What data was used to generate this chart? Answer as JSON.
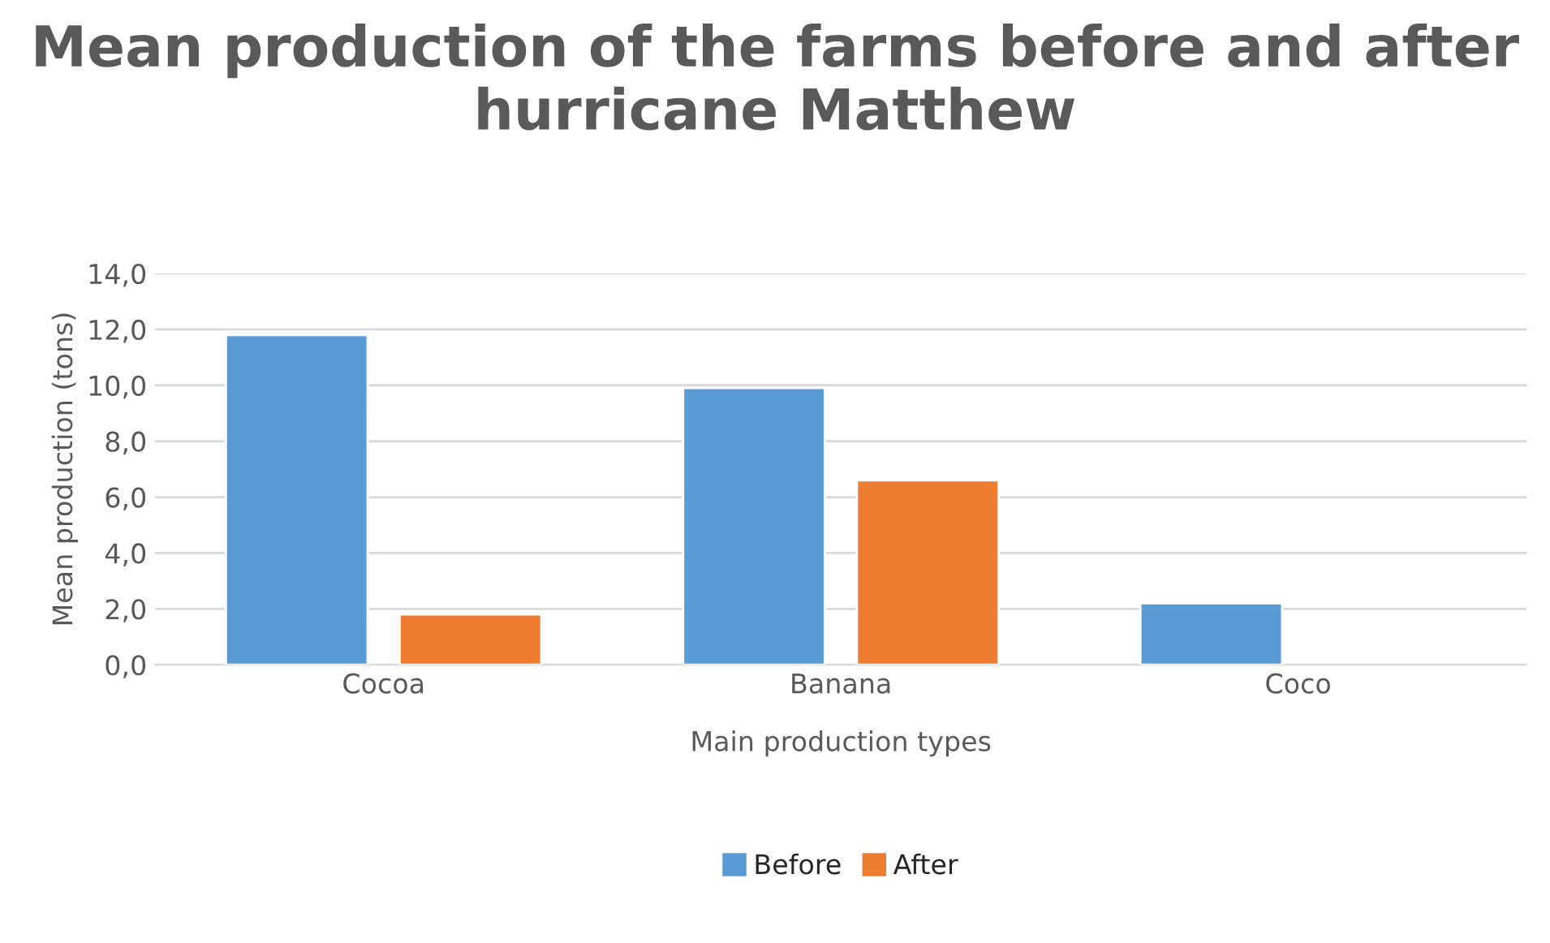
{
  "chart_data": {
    "type": "bar",
    "title": "Mean production of the farms before and after hurricane Matthew",
    "xlabel": "Main production types",
    "ylabel": "Mean production (tons)",
    "categories": [
      "Cocoa",
      "Banana",
      "Coco"
    ],
    "series": [
      {
        "name": "Before",
        "color": "#5b9bd5",
        "values": [
          11.8,
          9.9,
          2.2
        ]
      },
      {
        "name": "After",
        "color": "#ed7d31",
        "values": [
          1.8,
          6.6,
          null
        ]
      }
    ],
    "ylim": [
      0,
      14
    ],
    "yticks": [
      {
        "value": 0,
        "label": "0,0"
      },
      {
        "value": 2,
        "label": "2,0"
      },
      {
        "value": 4,
        "label": "4,0"
      },
      {
        "value": 6,
        "label": "6,0"
      },
      {
        "value": 8,
        "label": "8,0"
      },
      {
        "value": 10,
        "label": "10,0"
      },
      {
        "value": 12,
        "label": "12,0"
      },
      {
        "value": 14,
        "label": "14,0"
      }
    ],
    "grid": "y",
    "legend": "bottom"
  }
}
